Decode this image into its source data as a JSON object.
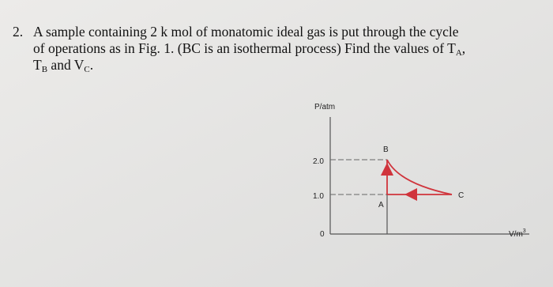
{
  "problem": {
    "number": "2.",
    "lines": [
      [
        "A sample containing 2 k mol of monatomic ideal gas is put through the cycle"
      ],
      [
        "of operations as in Fig. 1. (BC is an isothermal process) Find the values of T",
        "A",
        ","
      ],
      [
        "T",
        "B",
        " and V",
        "C",
        "."
      ]
    ]
  },
  "figure": {
    "y_label": "P/atm",
    "x_label": [
      "V/m",
      "3"
    ],
    "y_ticks": [
      "2.0",
      "1.0",
      "0"
    ],
    "points": [
      "A",
      "B",
      "C"
    ]
  }
}
